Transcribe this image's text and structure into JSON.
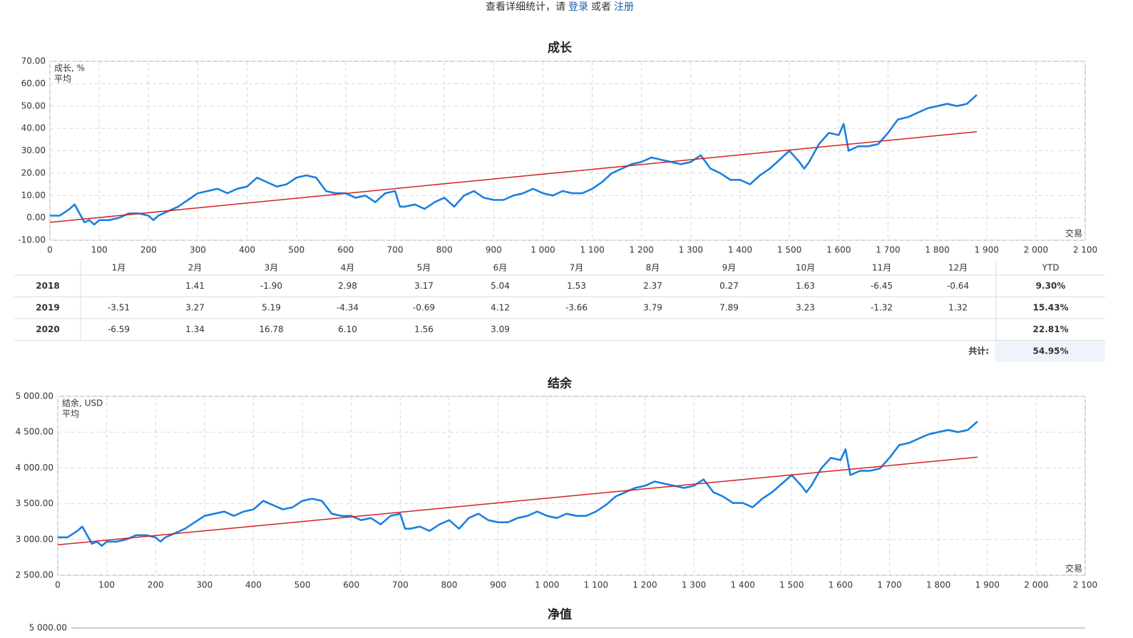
{
  "notice": {
    "text": "查看详细统计，请",
    "login": "登录",
    "or": "或者",
    "register": "注册"
  },
  "chart_data": [
    {
      "type": "line",
      "title": "成长",
      "xlabel": "交易",
      "grid": true,
      "legend": "upper left",
      "xlim": [
        0,
        2100
      ],
      "xticks": [
        0,
        100,
        200,
        300,
        400,
        500,
        600,
        700,
        800,
        900,
        {
          "value": 1000,
          "label": "1 000"
        },
        {
          "value": 1100,
          "label": "1 100"
        },
        {
          "value": 1200,
          "label": "1 200"
        },
        {
          "value": 1300,
          "label": "1 300"
        },
        {
          "value": 1400,
          "label": "1 400"
        },
        {
          "value": 1500,
          "label": "1 500"
        },
        {
          "value": 1600,
          "label": "1 600"
        },
        {
          "value": 1700,
          "label": "1 700"
        },
        {
          "value": 1800,
          "label": "1 800"
        },
        {
          "value": 1900,
          "label": "1 900"
        },
        {
          "value": 2000,
          "label": "2 000"
        },
        {
          "value": 2100,
          "label": "2 100"
        }
      ],
      "ylim": [
        -10,
        70
      ],
      "yticks": [
        {
          "value": -10,
          "label": "-10.00"
        },
        {
          "value": 0,
          "label": "0.00"
        },
        {
          "value": 10,
          "label": "10.00"
        },
        {
          "value": 20,
          "label": "20.00"
        },
        {
          "value": 30,
          "label": "30.00"
        },
        {
          "value": 40,
          "label": "40.00"
        },
        {
          "value": 50,
          "label": "50.00"
        },
        {
          "value": 60,
          "label": "60.00"
        },
        {
          "value": 70,
          "label": "70.00"
        }
      ],
      "series": [
        {
          "name": "成长, %",
          "color": "#1a80e0",
          "width": 2.6,
          "x": [
            0,
            20,
            40,
            50,
            60,
            70,
            80,
            90,
            100,
            120,
            140,
            160,
            180,
            200,
            210,
            220,
            240,
            260,
            280,
            300,
            320,
            340,
            360,
            380,
            400,
            420,
            440,
            460,
            480,
            500,
            520,
            540,
            560,
            580,
            600,
            620,
            640,
            660,
            680,
            700,
            710,
            720,
            740,
            760,
            780,
            800,
            820,
            840,
            860,
            880,
            900,
            920,
            940,
            960,
            980,
            1000,
            1020,
            1040,
            1060,
            1080,
            1100,
            1120,
            1140,
            1160,
            1180,
            1200,
            1220,
            1240,
            1260,
            1280,
            1300,
            1320,
            1340,
            1360,
            1380,
            1400,
            1420,
            1440,
            1460,
            1480,
            1500,
            1520,
            1530,
            1540,
            1560,
            1580,
            1600,
            1610,
            1620,
            1640,
            1660,
            1680,
            1700,
            1720,
            1740,
            1760,
            1780,
            1800,
            1820,
            1840,
            1860,
            1880
          ],
          "values": [
            1,
            1,
            4,
            6,
            2,
            -2,
            -1,
            -3,
            -1,
            -1,
            0,
            2,
            2,
            1,
            -1,
            1,
            3,
            5,
            8,
            11,
            12,
            13,
            11,
            13,
            14,
            18,
            16,
            14,
            15,
            18,
            19,
            18,
            12,
            11,
            11,
            9,
            10,
            7,
            11,
            12,
            5,
            5,
            6,
            4,
            7,
            9,
            5,
            10,
            12,
            9,
            8,
            8,
            10,
            11,
            13,
            11,
            10,
            12,
            11,
            11,
            13,
            16,
            20,
            22,
            24,
            25,
            27,
            26,
            25,
            24,
            25,
            28,
            22,
            20,
            17,
            17,
            15,
            19,
            22,
            26,
            30,
            25,
            22,
            25,
            33,
            38,
            37,
            42,
            30,
            32,
            32,
            33,
            38,
            44,
            45,
            47,
            49,
            50,
            51,
            50,
            51,
            55
          ]
        },
        {
          "name": "平均",
          "color": "#d42020",
          "width": 1.5,
          "x": [
            0,
            1880
          ],
          "values": [
            -2,
            38.5
          ]
        }
      ]
    },
    {
      "type": "line",
      "title": "结余",
      "xlabel": "交易",
      "grid": true,
      "legend": "upper left",
      "xlim": [
        0,
        2100
      ],
      "xticks": [
        0,
        100,
        200,
        300,
        400,
        500,
        600,
        700,
        800,
        900,
        {
          "value": 1000,
          "label": "1 000"
        },
        {
          "value": 1100,
          "label": "1 100"
        },
        {
          "value": 1200,
          "label": "1 200"
        },
        {
          "value": 1300,
          "label": "1 300"
        },
        {
          "value": 1400,
          "label": "1 400"
        },
        {
          "value": 1500,
          "label": "1 500"
        },
        {
          "value": 1600,
          "label": "1 600"
        },
        {
          "value": 1700,
          "label": "1 700"
        },
        {
          "value": 1800,
          "label": "1 800"
        },
        {
          "value": 1900,
          "label": "1 900"
        },
        {
          "value": 2000,
          "label": "2 000"
        },
        {
          "value": 2100,
          "label": "2 100"
        }
      ],
      "ylim": [
        2500,
        5000
      ],
      "yticks": [
        {
          "value": 2500,
          "label": "2 500.00"
        },
        {
          "value": 3000,
          "label": "3 000.00"
        },
        {
          "value": 3500,
          "label": "3 500.00"
        },
        {
          "value": 4000,
          "label": "4 000.00"
        },
        {
          "value": 4500,
          "label": "4 500.00"
        },
        {
          "value": 5000,
          "label": "5 000.00"
        }
      ],
      "series": [
        {
          "name": "结余, USD",
          "color": "#1a80e0",
          "width": 2.6,
          "x": [
            0,
            20,
            40,
            50,
            60,
            70,
            80,
            90,
            100,
            120,
            140,
            160,
            180,
            200,
            210,
            220,
            240,
            260,
            280,
            300,
            320,
            340,
            360,
            380,
            400,
            420,
            440,
            460,
            480,
            500,
            520,
            540,
            560,
            580,
            600,
            620,
            640,
            660,
            680,
            700,
            710,
            720,
            740,
            760,
            780,
            800,
            820,
            840,
            860,
            880,
            900,
            920,
            940,
            960,
            980,
            1000,
            1020,
            1040,
            1060,
            1080,
            1100,
            1120,
            1140,
            1160,
            1180,
            1200,
            1220,
            1240,
            1260,
            1280,
            1300,
            1320,
            1340,
            1360,
            1380,
            1400,
            1420,
            1440,
            1460,
            1480,
            1500,
            1520,
            1530,
            1540,
            1560,
            1580,
            1600,
            1610,
            1620,
            1640,
            1660,
            1680,
            1700,
            1720,
            1740,
            1760,
            1780,
            1800,
            1820,
            1840,
            1860,
            1880
          ],
          "values": [
            3030,
            3030,
            3120,
            3180,
            3060,
            2940,
            2970,
            2910,
            2970,
            2970,
            3000,
            3060,
            3060,
            3030,
            2970,
            3030,
            3090,
            3150,
            3240,
            3330,
            3360,
            3390,
            3330,
            3390,
            3420,
            3540,
            3480,
            3420,
            3450,
            3540,
            3570,
            3540,
            3360,
            3330,
            3330,
            3270,
            3300,
            3210,
            3330,
            3360,
            3150,
            3150,
            3180,
            3120,
            3210,
            3270,
            3150,
            3300,
            3360,
            3270,
            3240,
            3240,
            3300,
            3330,
            3390,
            3330,
            3300,
            3360,
            3330,
            3330,
            3390,
            3480,
            3600,
            3660,
            3720,
            3750,
            3810,
            3780,
            3750,
            3720,
            3750,
            3840,
            3660,
            3600,
            3510,
            3510,
            3450,
            3570,
            3660,
            3780,
            3900,
            3750,
            3660,
            3750,
            3990,
            4140,
            4110,
            4260,
            3900,
            3960,
            3960,
            3990,
            4140,
            4320,
            4350,
            4410,
            4470,
            4500,
            4530,
            4500,
            4530,
            4650
          ]
        },
        {
          "name": "平均",
          "color": "#d42020",
          "width": 1.5,
          "x": [
            0,
            1880
          ],
          "values": [
            2925,
            4150
          ]
        }
      ]
    },
    {
      "type": "line",
      "title": "净值",
      "yticks": [
        {
          "value": 5000,
          "label": "5 000.00"
        }
      ]
    }
  ],
  "table": {
    "columns": [
      "1月",
      "2月",
      "3月",
      "4月",
      "5月",
      "6月",
      "7月",
      "8月",
      "9月",
      "10月",
      "11月",
      "12月",
      "YTD"
    ],
    "rows": [
      {
        "year": "2018",
        "cells": [
          null,
          "1.41",
          "-1.90",
          "2.98",
          "3.17",
          "5.04",
          "1.53",
          "2.37",
          "0.27",
          "1.63",
          "-6.45",
          "-0.64"
        ],
        "ytd": "9.30%"
      },
      {
        "year": "2019",
        "cells": [
          "-3.51",
          "3.27",
          "5.19",
          "-4.34",
          "-0.69",
          "4.12",
          "-3.66",
          "3.79",
          "7.89",
          "3.23",
          "-1.32",
          "1.32"
        ],
        "ytd": "15.43%"
      },
      {
        "year": "2020",
        "cells": [
          "-6.59",
          "1.34",
          "16.78",
          "6.10",
          "1.56",
          "3.09",
          null,
          null,
          null,
          null,
          null,
          null
        ],
        "ytd": "22.81%"
      }
    ],
    "total_label": "共计:",
    "total": "54.95%"
  }
}
